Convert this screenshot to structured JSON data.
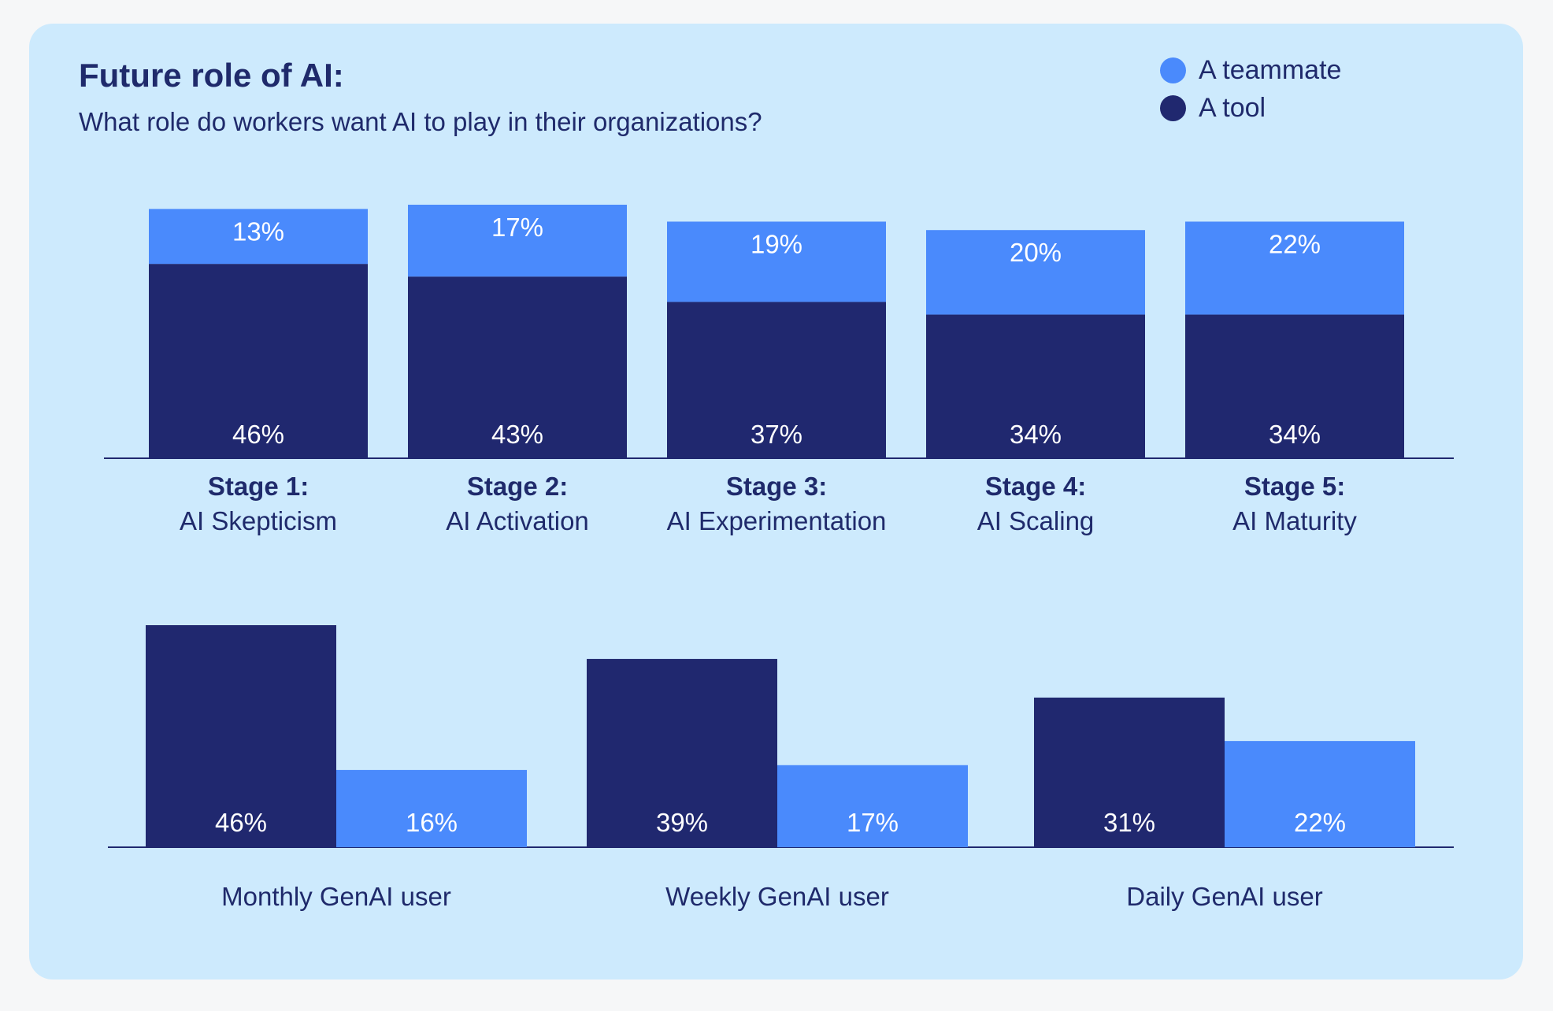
{
  "title": "Future role of AI:",
  "subtitle": "What role do workers want AI to play in their organizations?",
  "colors": {
    "teammate": "#4a8afc",
    "tool": "#20286f",
    "text": "#1f2a6b",
    "background": "#cdeafd"
  },
  "legend": [
    {
      "label": "A teammate",
      "color": "#4a8afc"
    },
    {
      "label": "A tool",
      "color": "#20286f"
    }
  ],
  "chart_data": [
    {
      "type": "bar",
      "stacked": true,
      "title": "Future role of AI:",
      "subtitle": "What role do workers want AI to play in their organizations?",
      "categories": [
        {
          "stage": "Stage 1:",
          "name": "AI Skepticism"
        },
        {
          "stage": "Stage 2:",
          "name": "AI Activation"
        },
        {
          "stage": "Stage 3:",
          "name": "AI Experimentation"
        },
        {
          "stage": "Stage 4:",
          "name": "AI Scaling"
        },
        {
          "stage": "Stage 5:",
          "name": "AI Maturity"
        }
      ],
      "series": [
        {
          "name": "A tool",
          "values": [
            46,
            43,
            37,
            34,
            34
          ]
        },
        {
          "name": "A teammate",
          "values": [
            13,
            17,
            19,
            20,
            22
          ]
        }
      ],
      "ylim": [
        0,
        60
      ],
      "legend_position": "top-right"
    },
    {
      "type": "bar",
      "stacked": false,
      "categories": [
        "Monthly GenAI user",
        "Weekly GenAI user",
        "Daily GenAI user"
      ],
      "series": [
        {
          "name": "A tool",
          "values": [
            46,
            39,
            31
          ]
        },
        {
          "name": "A teammate",
          "values": [
            16,
            17,
            22
          ]
        }
      ],
      "ylim": [
        0,
        46
      ]
    }
  ]
}
